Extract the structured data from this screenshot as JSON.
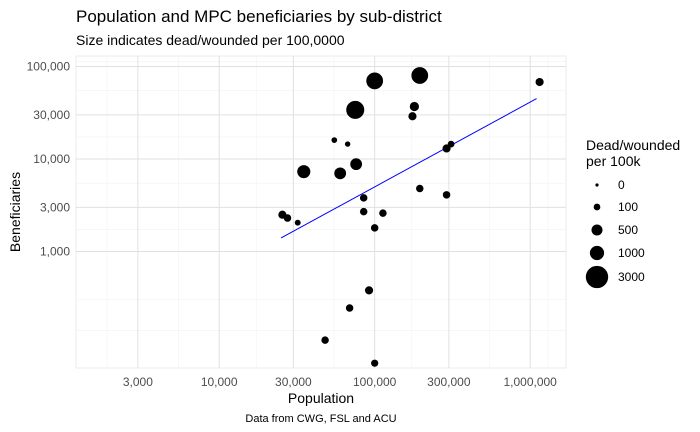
{
  "chart_data": {
    "type": "scatter",
    "title": "Population and MPC beneficiaries by sub-district",
    "subtitle": "Size indicates dead/wounded per 100,0000",
    "xlabel": "Population",
    "ylabel": "Beneficiaries",
    "caption": "Data from CWG, FSL and ACU",
    "x_scale": "log10",
    "y_scale": "log10",
    "xlim": [
      1200,
      1700000
    ],
    "ylim": [
      55,
      130000
    ],
    "x_ticks": [
      {
        "value": 3000,
        "label": "3,000"
      },
      {
        "value": 10000,
        "label": "10,000"
      },
      {
        "value": 30000,
        "label": "30,000"
      },
      {
        "value": 100000,
        "label": "100,000"
      },
      {
        "value": 300000,
        "label": "300,000"
      },
      {
        "value": 1000000,
        "label": "1,000,000"
      }
    ],
    "y_ticks": [
      {
        "value": 1000,
        "label": "1,000"
      },
      {
        "value": 3000,
        "label": "3,000"
      },
      {
        "value": 10000,
        "label": "10,000"
      },
      {
        "value": 30000,
        "label": "30,000"
      },
      {
        "value": 100000,
        "label": "100,000"
      }
    ],
    "y_minor_grid": [
      140,
      300
    ],
    "grid": true,
    "legend": {
      "title": "Dead/wounded\nper 100k",
      "position": "right",
      "entries": [
        {
          "label": "0",
          "value": 0
        },
        {
          "label": "100",
          "value": 100
        },
        {
          "label": "500",
          "value": 500
        },
        {
          "label": "1000",
          "value": 1000
        },
        {
          "label": "3000",
          "value": 3000
        }
      ]
    },
    "trend_line": {
      "color": "#0000ff",
      "x": [
        25000,
        1100000
      ],
      "y": [
        1400,
        45000
      ]
    },
    "points": [
      {
        "x": 100000,
        "y": 70000,
        "size": 1500
      },
      {
        "x": 195000,
        "y": 80000,
        "size": 1500
      },
      {
        "x": 75000,
        "y": 34000,
        "size": 1800
      },
      {
        "x": 1150000,
        "y": 68000,
        "size": 200
      },
      {
        "x": 180000,
        "y": 37000,
        "size": 300
      },
      {
        "x": 175000,
        "y": 29000,
        "size": 200
      },
      {
        "x": 55000,
        "y": 16000,
        "size": 50
      },
      {
        "x": 67000,
        "y": 14500,
        "size": 40
      },
      {
        "x": 310000,
        "y": 14500,
        "size": 100
      },
      {
        "x": 290000,
        "y": 13000,
        "size": 200
      },
      {
        "x": 76000,
        "y": 8800,
        "size": 600
      },
      {
        "x": 35000,
        "y": 7300,
        "size": 800
      },
      {
        "x": 60000,
        "y": 7000,
        "size": 600
      },
      {
        "x": 195000,
        "y": 4800,
        "size": 150
      },
      {
        "x": 290000,
        "y": 4100,
        "size": 150
      },
      {
        "x": 85000,
        "y": 3800,
        "size": 150
      },
      {
        "x": 85000,
        "y": 2700,
        "size": 150
      },
      {
        "x": 113000,
        "y": 2600,
        "size": 150
      },
      {
        "x": 25500,
        "y": 2500,
        "size": 200
      },
      {
        "x": 27500,
        "y": 2300,
        "size": 150
      },
      {
        "x": 32000,
        "y": 2050,
        "size": 60
      },
      {
        "x": 100000,
        "y": 1800,
        "size": 150
      },
      {
        "x": 92000,
        "y": 380,
        "size": 200
      },
      {
        "x": 69000,
        "y": 245,
        "size": 150
      },
      {
        "x": 48000,
        "y": 110,
        "size": 150
      },
      {
        "x": 100000,
        "y": 62,
        "size": 130
      }
    ]
  }
}
